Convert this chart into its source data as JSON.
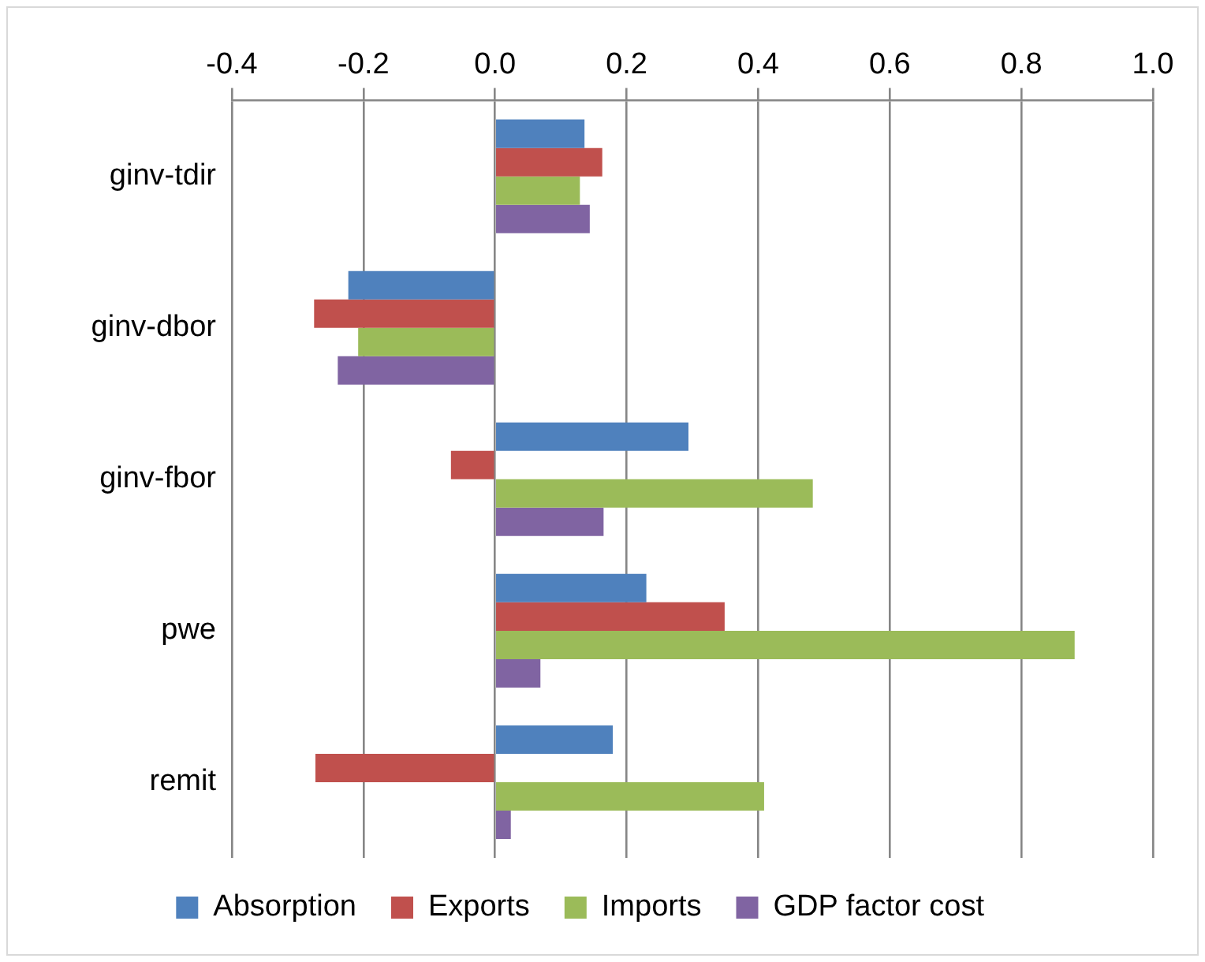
{
  "chart_data": {
    "type": "bar",
    "orientation": "horizontal",
    "categories": [
      "ginv-tdir",
      "ginv-dbor",
      "ginv-fbor",
      "pwe",
      "remit"
    ],
    "series": [
      {
        "name": "Absorption",
        "color": "#4f81bd",
        "values": [
          0.136,
          -0.223,
          0.294,
          0.23,
          0.179
        ]
      },
      {
        "name": "Exports",
        "color": "#c0504d",
        "values": [
          0.163,
          -0.275,
          -0.067,
          0.349,
          -0.273
        ]
      },
      {
        "name": "Imports",
        "color": "#9bbb59",
        "values": [
          0.129,
          -0.208,
          0.483,
          0.881,
          0.409
        ]
      },
      {
        "name": "GDP factor cost",
        "color": "#8064a2",
        "values": [
          0.144,
          -0.239,
          0.165,
          0.069,
          0.024
        ]
      }
    ],
    "xlim": [
      -0.4,
      1.0
    ],
    "xticks": [
      {
        "value": -0.4,
        "label": "-0.4"
      },
      {
        "value": -0.2,
        "label": "-0.2"
      },
      {
        "value": 0,
        "label": "0.0"
      },
      {
        "value": 0.2,
        "label": "0.2"
      },
      {
        "value": 0.4,
        "label": "0.4"
      },
      {
        "value": 0.6,
        "label": "0.6"
      },
      {
        "value": 0.8,
        "label": "0.8"
      },
      {
        "value": 1.0,
        "label": "1.0"
      }
    ],
    "grid": "x",
    "legend": "bottom"
  }
}
